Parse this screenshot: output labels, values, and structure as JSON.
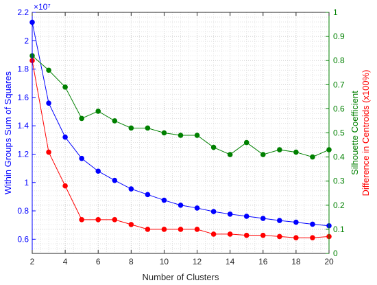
{
  "chart_data": {
    "type": "line",
    "title": "",
    "xlabel": "Number of Clusters",
    "ylabel_left": "Within Groups Sum of Squares",
    "ylabel_right": "Silhouette Coefficient\nDifference in Centroids (x100%)",
    "left_exponent_label": "×10⁷",
    "x": [
      2,
      3,
      4,
      5,
      6,
      7,
      8,
      9,
      10,
      11,
      12,
      13,
      14,
      15,
      16,
      17,
      18,
      19,
      20
    ],
    "xlim": [
      2,
      20
    ],
    "xticks": [
      2,
      4,
      6,
      8,
      10,
      12,
      14,
      16,
      18,
      20
    ],
    "ylim_left": [
      0.5,
      2.2
    ],
    "yticks_left": [
      0.6,
      0.8,
      1,
      1.2,
      1.4,
      1.6,
      1.8,
      2,
      2.2
    ],
    "ylim_right": [
      0,
      1
    ],
    "yticks_right": [
      0,
      0.1,
      0.2,
      0.3,
      0.4,
      0.5,
      0.6,
      0.7,
      0.8,
      0.9,
      1
    ],
    "grid": true,
    "colors": {
      "left_axis": "#0000ff",
      "right_axis": "#008000",
      "red": "#ff0000"
    },
    "series": [
      {
        "axis": "left",
        "color": "#0000ff",
        "values": [
          2.13,
          1.56,
          1.32,
          1.17,
          1.08,
          1.015,
          0.955,
          0.915,
          0.875,
          0.84,
          0.82,
          0.795,
          0.777,
          0.762,
          0.747,
          0.732,
          0.72,
          0.706,
          0.695
        ]
      },
      {
        "axis": "right",
        "color": "#008000",
        "values": [
          0.82,
          0.76,
          0.69,
          0.56,
          0.59,
          0.55,
          0.52,
          0.52,
          0.5,
          0.49,
          0.49,
          0.44,
          0.41,
          0.46,
          0.41,
          0.43,
          0.42,
          0.4,
          0.43
        ]
      },
      {
        "axis": "right",
        "color": "#ff0000",
        "values": [
          0.8,
          0.42,
          0.28,
          0.14,
          0.14,
          0.14,
          0.12,
          0.1,
          0.1,
          0.1,
          0.1,
          0.08,
          0.08,
          0.075,
          0.075,
          0.07,
          0.065,
          0.065,
          0.07
        ]
      }
    ]
  }
}
